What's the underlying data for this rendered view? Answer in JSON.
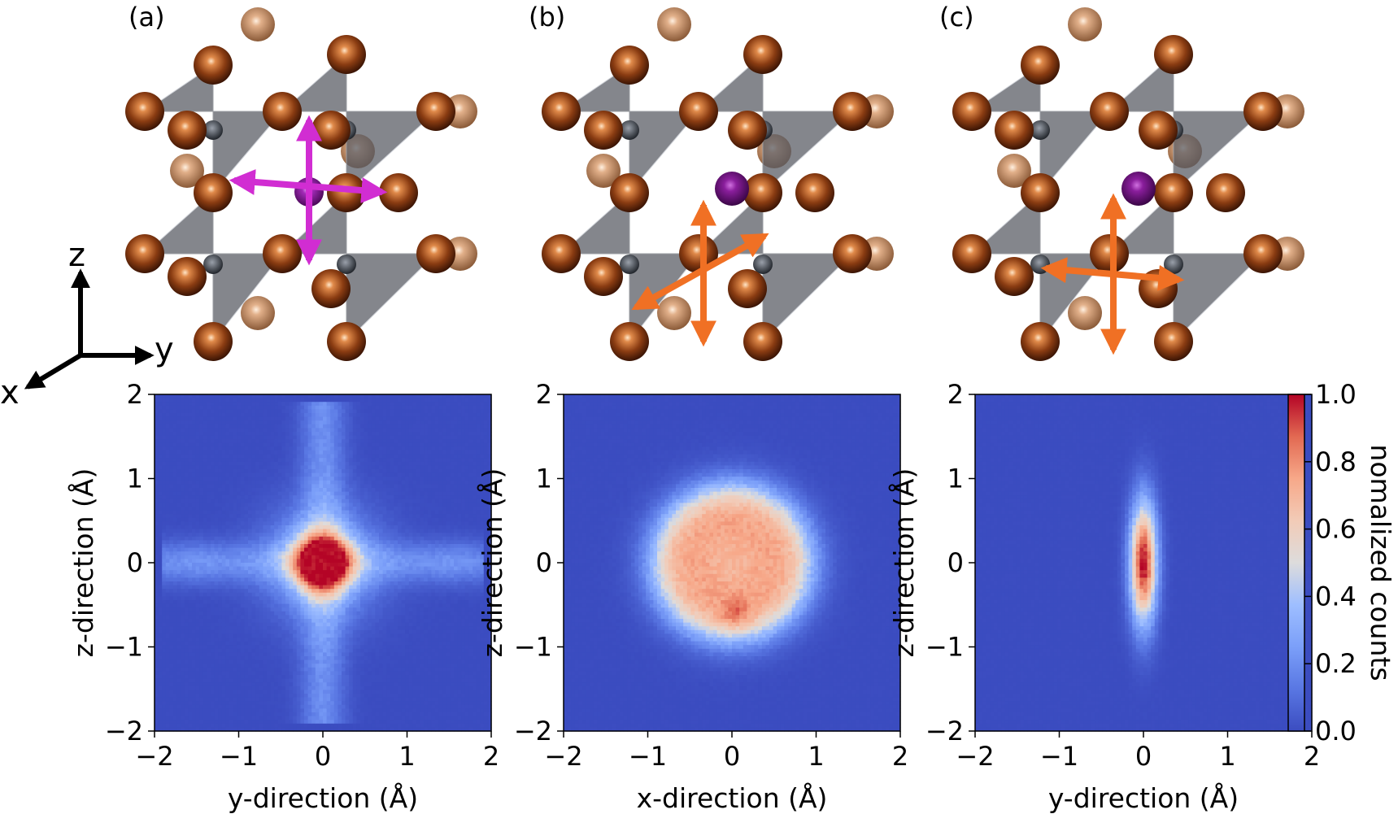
{
  "panels": [
    {
      "label": "(a)",
      "xlabel": "y-direction (Å)",
      "ylabel": "z-direction (Å)",
      "arrow_color": "#d12dd2",
      "arrows": [
        "z",
        "y"
      ]
    },
    {
      "label": "(b)",
      "xlabel": "x-direction (Å)",
      "ylabel": "z-direction (Å)",
      "arrow_color": "#f07024",
      "arrows": [
        "z",
        "x"
      ]
    },
    {
      "label": "(c)",
      "xlabel": "y-direction (Å)",
      "ylabel": "z-direction (Å)",
      "arrow_color": "#f07024",
      "arrows": [
        "z",
        "y"
      ]
    }
  ],
  "axes_indicator": {
    "z": "z",
    "y": "y",
    "x": "x"
  },
  "colors": {
    "lead_atom": "#8a3c12",
    "lead_atom_far": "#c88a62",
    "octahedron": "#6a6c72",
    "center_atom": "#7a1e8c",
    "cmap_low": "#3b4cc0",
    "cmap_mid": "#dddcdc",
    "cmap_high": "#b40426"
  },
  "chart_data": [
    {
      "type": "heatmap",
      "title": "",
      "xlabel": "y-direction (Å)",
      "ylabel": "z-direction (Å)",
      "xlim": [
        -2,
        2
      ],
      "ylim": [
        -2,
        2
      ],
      "xticks": [
        -2,
        -1,
        0,
        1,
        2
      ],
      "yticks": [
        -2,
        -1,
        0,
        1,
        2
      ],
      "tick_labels": [
        "−2",
        "−1",
        "0",
        "1",
        "2"
      ],
      "distribution": "cross-shaped: intense core at (0,0) with peak 1.0, diffuse arms along y and z reaching about ±1.8 Å at intensity ≈0.3",
      "peak": {
        "x": 0,
        "z": 0,
        "value": 1.0
      }
    },
    {
      "type": "heatmap",
      "title": "",
      "xlabel": "x-direction (Å)",
      "ylabel": "z-direction (Å)",
      "xlim": [
        -2,
        2
      ],
      "ylim": [
        -2,
        2
      ],
      "xticks": [
        -2,
        -1,
        0,
        1,
        2
      ],
      "yticks": [
        -2,
        -1,
        0,
        1,
        2
      ],
      "tick_labels": [
        "−2",
        "−1",
        "0",
        "1",
        "2"
      ],
      "distribution": "broad, roughly isotropic blob of radius ≈0.9 Å with values ≈0.8 inside and a slightly weaker center",
      "peak": {
        "x": 0,
        "z": -0.55,
        "value": 0.95
      }
    },
    {
      "type": "heatmap",
      "title": "",
      "xlabel": "y-direction (Å)",
      "ylabel": "z-direction (Å)",
      "xlim": [
        -2,
        2
      ],
      "ylim": [
        -2,
        2
      ],
      "xticks": [
        -2,
        -1,
        0,
        1,
        2
      ],
      "yticks": [
        -2,
        -1,
        0,
        1,
        2
      ],
      "tick_labels": [
        "−2",
        "−1",
        "0",
        "1",
        "2"
      ],
      "distribution": "narrow vertical ellipse: half-width ≈0.2 Å in y, half-height ≈1.0 Å in z, peak 1.0 at center",
      "peak": {
        "x": 0,
        "z": 0,
        "value": 1.0
      }
    }
  ],
  "colorbar": {
    "label": "nomalized counts",
    "range": [
      0.0,
      1.0
    ],
    "ticks": [
      "0.0",
      "0.2",
      "0.4",
      "0.6",
      "0.8",
      "1.0"
    ]
  }
}
